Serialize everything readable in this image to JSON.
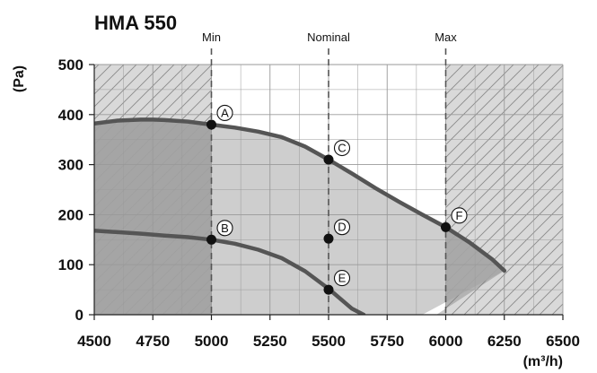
{
  "chart_data": {
    "type": "line",
    "title": "HMA 550",
    "ylabel": "(Pa)",
    "xlabel": "(m³/h)",
    "xlim": [
      4500,
      6500
    ],
    "ylim": [
      0,
      500
    ],
    "grid": true,
    "x_ticks": [
      4500,
      4750,
      5000,
      5250,
      5500,
      5750,
      6000,
      6250,
      6500
    ],
    "y_ticks": [
      0,
      100,
      200,
      300,
      400,
      500
    ],
    "markers": [
      {
        "label": "Min",
        "x": 5000
      },
      {
        "label": "Nominal",
        "x": 5500
      },
      {
        "label": "Max",
        "x": 6000
      }
    ],
    "series": [
      {
        "x": [
          4500,
          4600,
          4700,
          4750,
          4800,
          4900,
          5000,
          5100,
          5200,
          5300,
          5400,
          5500,
          5600,
          5700,
          5800,
          5900,
          6000,
          6100,
          6200,
          6250
        ],
        "values": [
          382,
          388,
          390,
          390,
          389,
          386,
          380,
          374,
          366,
          355,
          336,
          310,
          282,
          253,
          226,
          200,
          175,
          145,
          110,
          88
        ]
      },
      {
        "x": [
          4500,
          4600,
          4700,
          4800,
          4900,
          5000,
          5100,
          5200,
          5300,
          5400,
          5500,
          5600,
          5650
        ],
        "values": [
          168,
          165,
          162,
          158,
          155,
          150,
          142,
          130,
          113,
          87,
          52,
          12,
          0
        ]
      }
    ],
    "points": [
      {
        "label": "A",
        "x": 5000,
        "y": 380
      },
      {
        "label": "B",
        "x": 5000,
        "y": 150
      },
      {
        "label": "C",
        "x": 5500,
        "y": 310
      },
      {
        "label": "D",
        "x": 5500,
        "y": 152
      },
      {
        "label": "E",
        "x": 5500,
        "y": 50
      },
      {
        "label": "F",
        "x": 6000,
        "y": 175
      }
    ],
    "regions": [
      {
        "x": [
          4500,
          5000
        ],
        "desc": "hatched outside operating range"
      },
      {
        "x": [
          6000,
          6500
        ],
        "desc": "hatched outside operating range"
      }
    ],
    "colors": {
      "hatch_bg": "#d9d9d9",
      "hatch_line": "#8a8a8a",
      "area_fill": "#c6c6c6",
      "dark_overlay": "#7a7a7a",
      "curve": "#555555",
      "grid": "#9a9a9a",
      "marker_line": "#555555"
    }
  }
}
